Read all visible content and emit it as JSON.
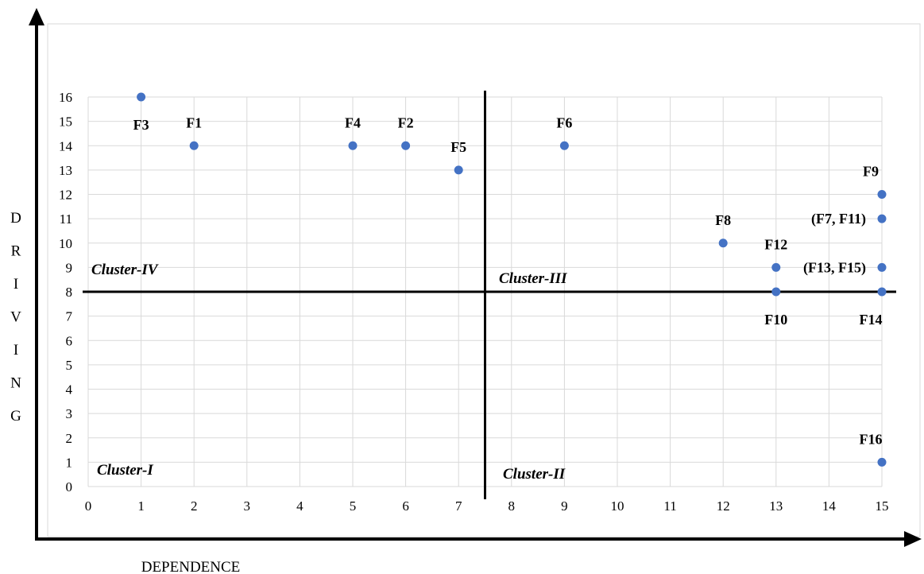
{
  "chart_data": {
    "type": "scatter",
    "title": "",
    "xlabel": "DEPENDENCE",
    "ylabel": "DRIVING",
    "xlim": [
      0,
      15
    ],
    "ylim": [
      0,
      16
    ],
    "x_ticks": [
      0,
      1,
      2,
      3,
      4,
      5,
      6,
      7,
      8,
      9,
      10,
      11,
      12,
      13,
      14,
      15
    ],
    "y_ticks": [
      0,
      1,
      2,
      3,
      4,
      5,
      6,
      7,
      8,
      9,
      10,
      11,
      12,
      13,
      14,
      15,
      16
    ],
    "grid": true,
    "marker_color": "#4472C4",
    "points": [
      {
        "x": 1,
        "y": 16
      },
      {
        "x": 2,
        "y": 14
      },
      {
        "x": 5,
        "y": 14
      },
      {
        "x": 6,
        "y": 14
      },
      {
        "x": 7,
        "y": 13
      },
      {
        "x": 9,
        "y": 14
      },
      {
        "x": 12,
        "y": 10
      },
      {
        "x": 13,
        "y": 9
      },
      {
        "x": 13,
        "y": 8
      },
      {
        "x": 15,
        "y": 12
      },
      {
        "x": 15,
        "y": 11
      },
      {
        "x": 15,
        "y": 9
      },
      {
        "x": 15,
        "y": 8
      },
      {
        "x": 15,
        "y": 1
      }
    ],
    "point_labels": [
      {
        "text": "F3",
        "x": 1,
        "y": 16,
        "anchor": "below"
      },
      {
        "text": "F1",
        "x": 2,
        "y": 14,
        "anchor": "above"
      },
      {
        "text": "F4",
        "x": 5,
        "y": 14,
        "anchor": "above"
      },
      {
        "text": "F2",
        "x": 6,
        "y": 14,
        "anchor": "above"
      },
      {
        "text": "F5",
        "x": 7,
        "y": 13,
        "anchor": "above"
      },
      {
        "text": "F6",
        "x": 9,
        "y": 14,
        "anchor": "above"
      },
      {
        "text": "F8",
        "x": 12,
        "y": 10,
        "anchor": "above"
      },
      {
        "text": "F12",
        "x": 13,
        "y": 9,
        "anchor": "above"
      },
      {
        "text": "F10",
        "x": 13,
        "y": 8,
        "anchor": "below"
      },
      {
        "text": "F9",
        "x": 15,
        "y": 12,
        "anchor": "above"
      },
      {
        "text": "(F7, F11)",
        "x": 15,
        "y": 11,
        "anchor": "left"
      },
      {
        "text": "(F13, F15)",
        "x": 15,
        "y": 9,
        "anchor": "left"
      },
      {
        "text": "F14",
        "x": 15,
        "y": 8,
        "anchor": "below"
      },
      {
        "text": "F16",
        "x": 15,
        "y": 1,
        "anchor": "above"
      }
    ],
    "dividers": {
      "x": 7.5,
      "y": 8
    },
    "clusters": [
      {
        "text": "Cluster-IV",
        "quadrant": "top-left"
      },
      {
        "text": "Cluster-III",
        "quadrant": "top-right"
      },
      {
        "text": "Cluster-I",
        "quadrant": "bottom-left"
      },
      {
        "text": "Cluster-II",
        "quadrant": "bottom-right"
      }
    ]
  }
}
